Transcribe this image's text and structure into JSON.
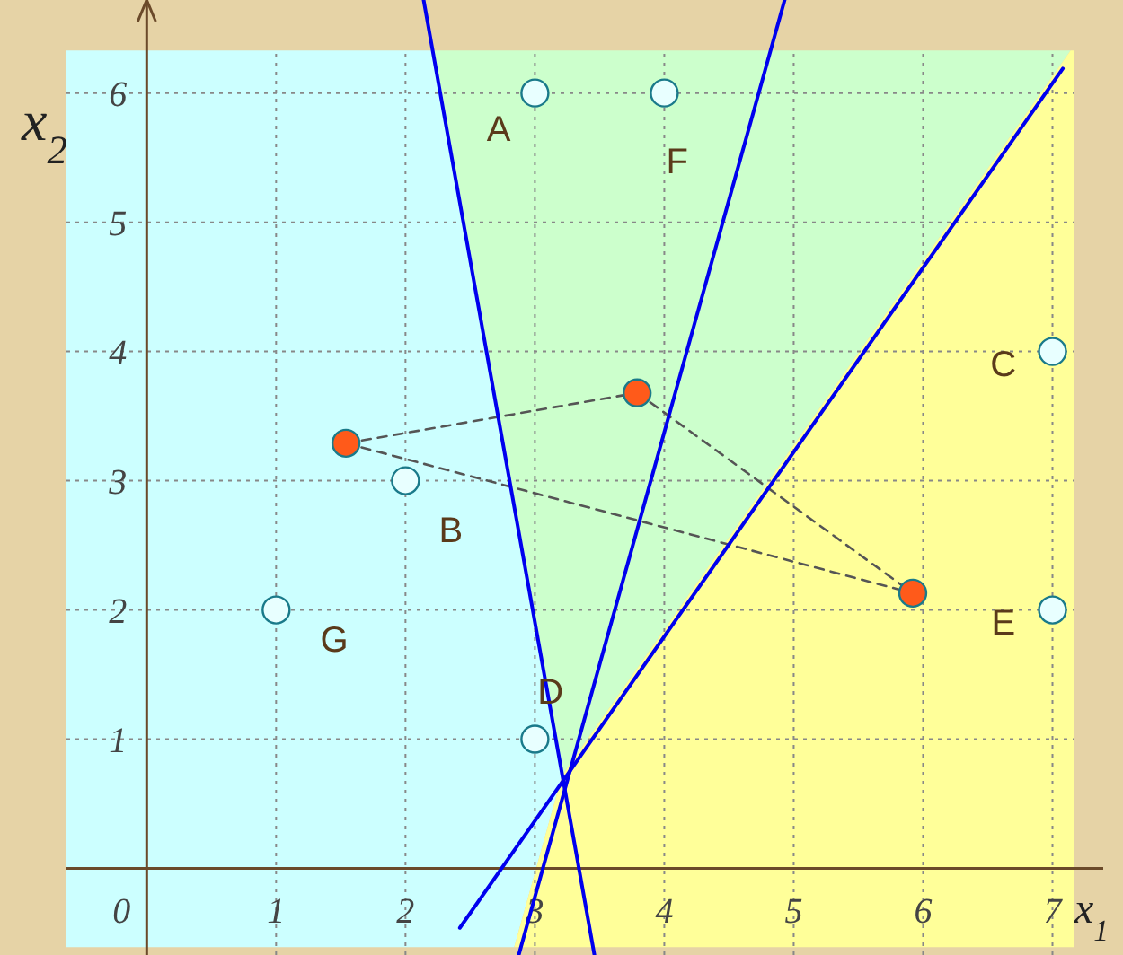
{
  "chart_data": {
    "type": "scatter",
    "xlabel": "x$_{1}$",
    "ylabel": "x$_{2}$",
    "xlim": [
      -0.62,
      7.17
    ],
    "ylim": [
      -0.67,
      6.72
    ],
    "xticks": [
      0,
      1,
      2,
      3,
      4,
      5,
      6,
      7
    ],
    "yticks": [
      1,
      2,
      3,
      4,
      5,
      6
    ],
    "grid": true,
    "series": [
      {
        "type": "area",
        "color": "#ccffff",
        "x": [
          -0.62,
          2.84,
          3.21,
          2.21,
          -0.62
        ],
        "values": [
          -0.61,
          -0.61,
          0.72,
          6.33,
          6.33
        ]
      },
      {
        "type": "area",
        "color": "#ccffcc",
        "x": [
          2.21,
          3.21,
          7.14
        ],
        "values": [
          6.33,
          0.72,
          6.33
        ]
      },
      {
        "type": "area",
        "color": "#ffff99",
        "x": [
          2.84,
          7.17,
          7.17,
          7.14,
          3.21
        ],
        "values": [
          -0.61,
          -0.61,
          6.33,
          6.33,
          0.72
        ]
      },
      {
        "type": "line",
        "color": "#555555",
        "line_style": "dashed",
        "x": [
          1.54,
          3.79
        ],
        "values": [
          3.29,
          3.68
        ]
      },
      {
        "type": "line",
        "color": "#555555",
        "line_style": "dashed",
        "x": [
          3.79,
          5.92
        ],
        "values": [
          3.68,
          2.13
        ]
      },
      {
        "type": "line",
        "color": "#555555",
        "line_style": "dashed",
        "x": [
          1.54,
          5.92
        ],
        "values": [
          3.29,
          2.13
        ]
      },
      {
        "type": "line",
        "color": "#0000ee",
        "line_style": "solid",
        "x": [
          2.14,
          3.46
        ],
        "values": [
          6.72,
          -0.67
        ]
      },
      {
        "type": "line",
        "color": "#0000ee",
        "line_style": "solid",
        "x": [
          4.93,
          2.875
        ],
        "values": [
          6.72,
          -0.67
        ]
      },
      {
        "type": "line",
        "color": "#0000ee",
        "line_style": "solid",
        "x": [
          7.08,
          2.42
        ],
        "values": [
          6.19,
          -0.46
        ]
      },
      {
        "color": "#e8ffff",
        "marker": "circle",
        "x": [
          3,
          4,
          7,
          2,
          7,
          1,
          3
        ],
        "values": [
          6,
          6,
          4,
          3,
          2,
          2,
          1
        ]
      },
      {
        "type": "scatter",
        "color": "#ff5a1a",
        "marker": "circle",
        "x": [
          1.54,
          3.79,
          5.92
        ],
        "values": [
          3.29,
          3.68,
          2.13
        ]
      }
    ],
    "annotations": [
      "A",
      "F",
      "C",
      "B",
      "E",
      "G",
      "D"
    ]
  }
}
